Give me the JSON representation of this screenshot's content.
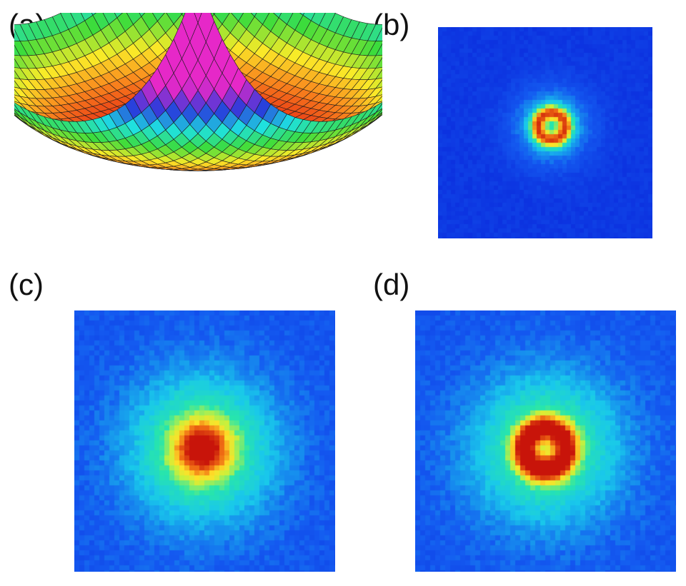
{
  "panels": [
    {
      "label": "(a)",
      "kind": "surface-plot"
    },
    {
      "label": "(b)",
      "kind": "density-image"
    },
    {
      "label": "(c)",
      "kind": "density-image"
    },
    {
      "label": "(d)",
      "kind": "density-image"
    }
  ],
  "colors": {
    "background": "#0a3fe6",
    "low": "#1a4ed8",
    "mid": "#19d6d0",
    "high": "#ffe034",
    "peak": "#d81e05"
  }
}
